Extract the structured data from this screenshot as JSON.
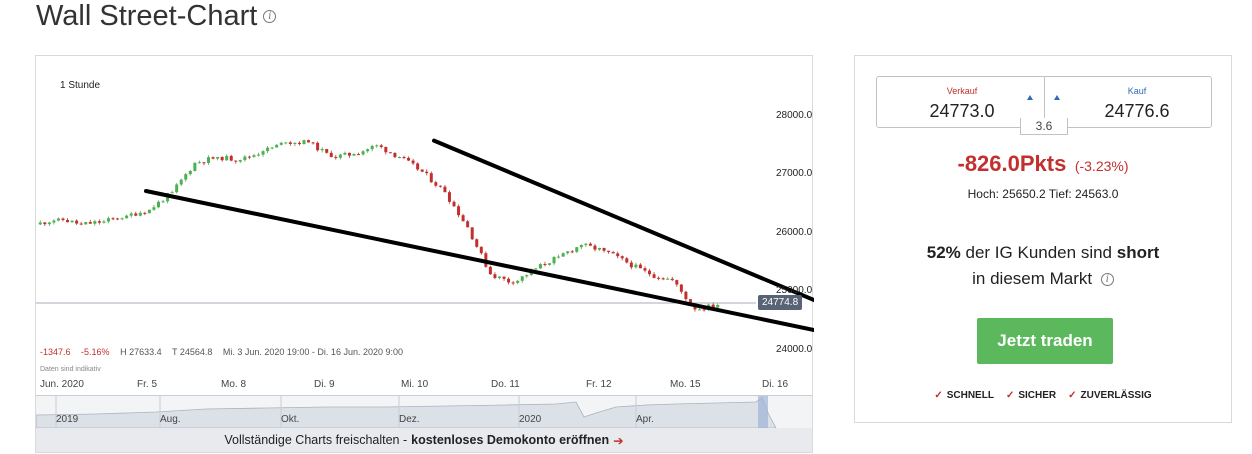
{
  "page": {
    "title": "Wall Street-Chart"
  },
  "chart": {
    "interval_label": "1 Stunde",
    "current_price": "24774.8",
    "stats": {
      "change_pts": "-1347.6",
      "change_pct": "-5.16%",
      "high": "H 27633.4",
      "low": "T 24564.8",
      "range": "Mi. 3 Jun. 2020 19:00 - Di. 16 Jun. 2020 9:00"
    },
    "disclaimer": "Daten sind indikativ",
    "overview_labels": [
      "2019",
      "Aug.",
      "Okt.",
      "Dez.",
      "2020",
      "Apr."
    ],
    "cta": {
      "prefix": "Vollständige Charts freischalten -",
      "link": "kostenloses Demokonto eröffnen",
      "arrow": "➔"
    }
  },
  "chart_data": {
    "type": "line",
    "title": "",
    "xlabel": "",
    "ylabel": "",
    "x_tick_labels": [
      "Jun. 2020",
      "Fr. 5",
      "Mo. 8",
      "Di. 9",
      "Mi. 10",
      "Do. 11",
      "Fr. 12",
      "Mo. 15",
      "Di. 16"
    ],
    "y_tick_labels": [
      "28000.0",
      "27000.0",
      "26000.0",
      "25000.0",
      "24000.0"
    ],
    "ylim": [
      23900,
      28250
    ],
    "grid": false,
    "series": [
      {
        "x": [
          "Jun. 2020",
          "",
          "",
          "",
          "Fr. 5",
          "",
          "",
          "Mo. 8",
          "",
          "",
          "Di. 9",
          "",
          "",
          "Mi. 10",
          "",
          "",
          "Do. 11",
          "",
          "",
          "",
          "",
          "Fr. 12",
          "",
          "",
          "",
          "Mo. 15",
          "",
          "",
          "",
          "",
          "Di. 16"
        ],
        "values": [
          26150,
          26250,
          26150,
          26200,
          26300,
          26400,
          26700,
          27200,
          27300,
          27250,
          27400,
          27550,
          27550,
          27300,
          27350,
          27500,
          27300,
          27050,
          26700,
          26100,
          25300,
          25150,
          25400,
          25600,
          25800,
          25700,
          25500,
          25300,
          25200,
          24700,
          24774.8
        ]
      }
    ],
    "trendlines": [
      {
        "from": [
          "Fr. 5",
          26720
        ],
        "to": [
          "Di. 16+",
          24050
        ]
      },
      {
        "from": [
          "Mi. 10",
          27580
        ],
        "to": [
          "Di. 16",
          24830
        ]
      }
    ]
  },
  "quote": {
    "sell_label": "Verkauf",
    "sell_value": "24773.0",
    "buy_label": "Kauf",
    "buy_value": "24776.6",
    "spread": "3.6",
    "change_pts": "-826.0Pkts",
    "change_pct": "(-3.23%)",
    "high_low": "Hoch: 25650.2  Tief: 24563.0"
  },
  "sentiment": {
    "pct": "52%",
    "text_a": "der IG Kunden sind",
    "direction": "short",
    "text_b": "in diesem Markt"
  },
  "trade_button": "Jetzt traden",
  "features": [
    "SCHNELL",
    "SICHER",
    "ZUVERLÄSSIG"
  ],
  "colors": {
    "negative": "#c2302e",
    "positive": "#4caf50",
    "button": "#5cb85c",
    "price_tag": "#586375",
    "link_arrow": "#2f6bb5"
  },
  "icons": [
    "info-icon",
    "up-triangle-icon",
    "check-icon",
    "arrow-right-icon"
  ]
}
